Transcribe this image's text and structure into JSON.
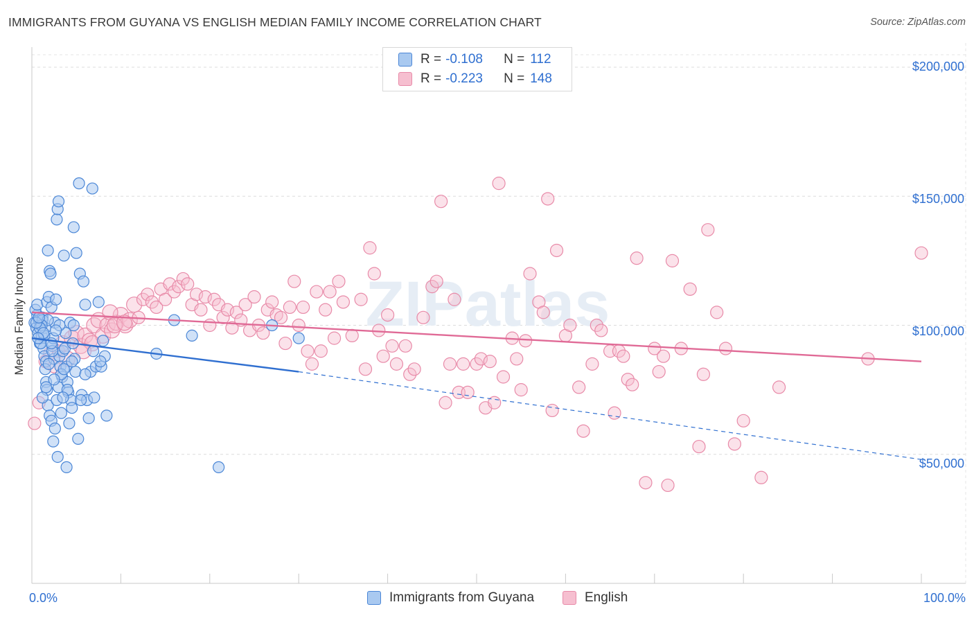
{
  "title": "IMMIGRANTS FROM GUYANA VS ENGLISH MEDIAN FAMILY INCOME CORRELATION CHART",
  "source": "Source: ZipAtlas.com",
  "watermark": "ZIPatlas",
  "legend": {
    "rows": [
      {
        "r_label": "R =",
        "r_value": "-0.108",
        "n_label": "N =",
        "n_value": "112"
      },
      {
        "r_label": "R =",
        "r_value": "-0.223",
        "n_label": "N =",
        "n_value": "148"
      }
    ]
  },
  "bottom_legend": {
    "series1": "Immigrants from Guyana",
    "series2": "English"
  },
  "axes": {
    "x_min_label": "0.0%",
    "x_max_label": "100.0%",
    "y_title": "Median Family Income",
    "y_ticks": [
      "$200,000",
      "$150,000",
      "$100,000",
      "$50,000"
    ]
  },
  "colors": {
    "guyana_fill": "#a9c9f0",
    "guyana_stroke": "#4a86d6",
    "guyana_line": "#2f6fd0",
    "english_fill": "#f6bfd0",
    "english_stroke": "#e88aa8",
    "english_line": "#e06a96",
    "axis_text": "#2f6fd0"
  },
  "chart_data": {
    "type": "scatter",
    "title": "IMMIGRANTS FROM GUYANA VS ENGLISH MEDIAN FAMILY INCOME CORRELATION CHART",
    "xlabel": "",
    "ylabel": "Median Family Income",
    "xlim": [
      0,
      100
    ],
    "ylim": [
      0,
      210000
    ],
    "y_ticks": [
      50000,
      100000,
      150000,
      200000
    ],
    "grid": true,
    "legend_placement": "top-center",
    "series": [
      {
        "name": "Immigrants from Guyana",
        "r": -0.108,
        "n": 112,
        "trend": {
          "x": [
            0,
            30
          ],
          "y": [
            95000,
            82000
          ],
          "dashed_extension_to": [
            100,
            48000
          ]
        },
        "points": [
          [
            0.3,
            101000
          ],
          [
            0.5,
            99000
          ],
          [
            0.6,
            104000
          ],
          [
            0.7,
            97000
          ],
          [
            0.8,
            102000
          ],
          [
            0.9,
            93000
          ],
          [
            1.0,
            100000
          ],
          [
            1.1,
            96000
          ],
          [
            1.2,
            103000
          ],
          [
            0.4,
            106000
          ],
          [
            0.6,
            108000
          ],
          [
            1.3,
            91000
          ],
          [
            1.4,
            88000
          ],
          [
            1.5,
            99000
          ],
          [
            1.6,
            86000
          ],
          [
            1.7,
            109000
          ],
          [
            1.8,
            129000
          ],
          [
            1.9,
            111000
          ],
          [
            2.0,
            121000
          ],
          [
            2.1,
            120000
          ],
          [
            2.2,
            107000
          ],
          [
            2.3,
            92000
          ],
          [
            2.4,
            95000
          ],
          [
            2.5,
            87000
          ],
          [
            2.6,
            101000
          ],
          [
            2.7,
            110000
          ],
          [
            2.8,
            141000
          ],
          [
            2.9,
            145000
          ],
          [
            3.0,
            148000
          ],
          [
            3.1,
            88000
          ],
          [
            1.5,
            83000
          ],
          [
            1.6,
            78000
          ],
          [
            1.7,
            75000
          ],
          [
            1.8,
            69000
          ],
          [
            2.0,
            65000
          ],
          [
            2.2,
            63000
          ],
          [
            2.4,
            55000
          ],
          [
            2.6,
            60000
          ],
          [
            2.8,
            71000
          ],
          [
            3.0,
            76000
          ],
          [
            3.2,
            84000
          ],
          [
            3.4,
            80000
          ],
          [
            3.5,
            90000
          ],
          [
            3.6,
            127000
          ],
          [
            3.7,
            91000
          ],
          [
            3.8,
            97000
          ],
          [
            3.9,
            84000
          ],
          [
            4.0,
            78000
          ],
          [
            4.1,
            74000
          ],
          [
            4.2,
            62000
          ],
          [
            4.3,
            101000
          ],
          [
            4.4,
            71000
          ],
          [
            4.5,
            68000
          ],
          [
            4.6,
            93000
          ],
          [
            4.7,
            138000
          ],
          [
            4.8,
            87000
          ],
          [
            4.9,
            82000
          ],
          [
            5.0,
            128000
          ],
          [
            5.2,
            56000
          ],
          [
            5.4,
            120000
          ],
          [
            5.6,
            73000
          ],
          [
            5.8,
            117000
          ],
          [
            6.0,
            108000
          ],
          [
            6.2,
            71000
          ],
          [
            6.4,
            64000
          ],
          [
            6.6,
            82000
          ],
          [
            6.8,
            153000
          ],
          [
            7.0,
            72000
          ],
          [
            7.2,
            84000
          ],
          [
            7.5,
            109000
          ],
          [
            7.8,
            84000
          ],
          [
            8.0,
            94000
          ],
          [
            8.2,
            88000
          ],
          [
            8.4,
            65000
          ],
          [
            1.2,
            102000
          ],
          [
            1.4,
            96000
          ],
          [
            1.0,
            93000
          ],
          [
            2.9,
            49000
          ],
          [
            3.9,
            45000
          ],
          [
            2.3,
            90000
          ],
          [
            3.3,
            81000
          ],
          [
            3.6,
            83000
          ],
          [
            4.0,
            75000
          ],
          [
            5.3,
            155000
          ],
          [
            1.8,
            102000
          ],
          [
            1.1,
            100000
          ],
          [
            0.9,
            99000
          ],
          [
            1.9,
            85000
          ],
          [
            2.5,
            79000
          ],
          [
            0.5,
            101000
          ],
          [
            14.0,
            89000
          ],
          [
            16.0,
            102000
          ],
          [
            18.0,
            96000
          ],
          [
            21.0,
            45000
          ],
          [
            27.0,
            100000
          ],
          [
            30.0,
            95000
          ],
          [
            1.2,
            72000
          ],
          [
            3.3,
            66000
          ],
          [
            4.5,
            86000
          ],
          [
            6.0,
            81000
          ],
          [
            0.8,
            103000
          ],
          [
            1.3,
            97000
          ],
          [
            2.2,
            93000
          ],
          [
            0.7,
            95000
          ],
          [
            3.1,
            100000
          ],
          [
            4.7,
            100000
          ],
          [
            5.5,
            71000
          ],
          [
            6.9,
            90000
          ],
          [
            7.7,
            86000
          ],
          [
            1.6,
            76000
          ],
          [
            2.7,
            98000
          ],
          [
            3.5,
            72000
          ]
        ]
      },
      {
        "name": "English",
        "r": -0.223,
        "n": 148,
        "trend": {
          "x": [
            0,
            100
          ],
          "y": [
            105000,
            86000
          ]
        },
        "points": [
          [
            0.3,
            62000
          ],
          [
            0.8,
            70000
          ],
          [
            1.5,
            86000
          ],
          [
            2.0,
            89000
          ],
          [
            2.5,
            84000
          ],
          [
            3.0,
            90000
          ],
          [
            3.5,
            93000
          ],
          [
            4.0,
            87000
          ],
          [
            4.5,
            95000
          ],
          [
            5.0,
            97000
          ],
          [
            5.5,
            92000
          ],
          [
            6.0,
            96000
          ],
          [
            6.5,
            94000
          ],
          [
            7.0,
            100000
          ],
          [
            7.5,
            102000
          ],
          [
            8.0,
            96000
          ],
          [
            8.5,
            100000
          ],
          [
            9.0,
            98000
          ],
          [
            9.5,
            101000
          ],
          [
            10.0,
            104000
          ],
          [
            10.5,
            100000
          ],
          [
            11.0,
            102000
          ],
          [
            11.5,
            108000
          ],
          [
            12.0,
            103000
          ],
          [
            12.5,
            110000
          ],
          [
            13.0,
            112000
          ],
          [
            13.5,
            109000
          ],
          [
            14.0,
            107000
          ],
          [
            14.5,
            114000
          ],
          [
            15.0,
            110000
          ],
          [
            15.5,
            116000
          ],
          [
            16.0,
            113000
          ],
          [
            16.5,
            115000
          ],
          [
            17.0,
            118000
          ],
          [
            17.5,
            116000
          ],
          [
            18.0,
            108000
          ],
          [
            18.5,
            112000
          ],
          [
            19.0,
            106000
          ],
          [
            19.5,
            111000
          ],
          [
            20.0,
            100000
          ],
          [
            20.5,
            110000
          ],
          [
            21.0,
            108000
          ],
          [
            21.5,
            103000
          ],
          [
            22.0,
            106000
          ],
          [
            22.5,
            99000
          ],
          [
            23.0,
            105000
          ],
          [
            23.5,
            102000
          ],
          [
            24.0,
            108000
          ],
          [
            24.5,
            98000
          ],
          [
            25.0,
            111000
          ],
          [
            25.5,
            100000
          ],
          [
            26.0,
            97000
          ],
          [
            26.5,
            106000
          ],
          [
            27.0,
            109000
          ],
          [
            27.5,
            104000
          ],
          [
            28.0,
            103000
          ],
          [
            28.5,
            93000
          ],
          [
            29.0,
            107000
          ],
          [
            29.5,
            117000
          ],
          [
            30.0,
            100000
          ],
          [
            30.5,
            107000
          ],
          [
            31.0,
            90000
          ],
          [
            31.5,
            85000
          ],
          [
            32.0,
            113000
          ],
          [
            32.5,
            90000
          ],
          [
            33.0,
            106000
          ],
          [
            33.5,
            113000
          ],
          [
            34.0,
            95000
          ],
          [
            34.5,
            117000
          ],
          [
            35.0,
            109000
          ],
          [
            36.0,
            96000
          ],
          [
            37.0,
            110000
          ],
          [
            37.5,
            83000
          ],
          [
            38.0,
            130000
          ],
          [
            38.5,
            120000
          ],
          [
            39.0,
            98000
          ],
          [
            39.5,
            88000
          ],
          [
            40.0,
            104000
          ],
          [
            40.5,
            92000
          ],
          [
            41.0,
            85000
          ],
          [
            42.0,
            92000
          ],
          [
            42.5,
            81000
          ],
          [
            43.0,
            83000
          ],
          [
            44.0,
            103000
          ],
          [
            45.0,
            115000
          ],
          [
            45.5,
            117000
          ],
          [
            46.0,
            148000
          ],
          [
            46.5,
            70000
          ],
          [
            47.0,
            85000
          ],
          [
            47.5,
            110000
          ],
          [
            48.0,
            74000
          ],
          [
            48.5,
            85000
          ],
          [
            49.0,
            74000
          ],
          [
            50.0,
            85000
          ],
          [
            50.5,
            87000
          ],
          [
            51.0,
            68000
          ],
          [
            51.5,
            86000
          ],
          [
            52.0,
            70000
          ],
          [
            52.5,
            155000
          ],
          [
            53.0,
            80000
          ],
          [
            54.0,
            95000
          ],
          [
            54.5,
            87000
          ],
          [
            55.0,
            75000
          ],
          [
            55.5,
            94000
          ],
          [
            56.0,
            120000
          ],
          [
            57.0,
            109000
          ],
          [
            57.5,
            105000
          ],
          [
            58.0,
            149000
          ],
          [
            58.5,
            67000
          ],
          [
            59.0,
            129000
          ],
          [
            60.0,
            96000
          ],
          [
            60.5,
            100000
          ],
          [
            61.5,
            76000
          ],
          [
            62.0,
            59000
          ],
          [
            63.0,
            85000
          ],
          [
            63.5,
            100000
          ],
          [
            64.0,
            98000
          ],
          [
            65.0,
            90000
          ],
          [
            65.5,
            66000
          ],
          [
            66.0,
            90000
          ],
          [
            66.5,
            88000
          ],
          [
            67.0,
            79000
          ],
          [
            67.5,
            77000
          ],
          [
            68.0,
            126000
          ],
          [
            69.0,
            39000
          ],
          [
            70.0,
            91000
          ],
          [
            70.5,
            82000
          ],
          [
            71.0,
            88000
          ],
          [
            71.5,
            38000
          ],
          [
            72.0,
            125000
          ],
          [
            73.0,
            91000
          ],
          [
            74.0,
            114000
          ],
          [
            75.0,
            53000
          ],
          [
            75.5,
            81000
          ],
          [
            76.0,
            137000
          ],
          [
            77.0,
            105000
          ],
          [
            78.0,
            91000
          ],
          [
            79.0,
            54000
          ],
          [
            80.0,
            63000
          ],
          [
            82.0,
            41000
          ],
          [
            84.0,
            76000
          ],
          [
            94.0,
            87000
          ],
          [
            100.0,
            128000
          ],
          [
            8.8,
            105000
          ],
          [
            9.3,
            100000
          ],
          [
            10.4,
            101000
          ],
          [
            6.8,
            93000
          ],
          [
            5.8,
            90000
          ]
        ]
      }
    ]
  }
}
